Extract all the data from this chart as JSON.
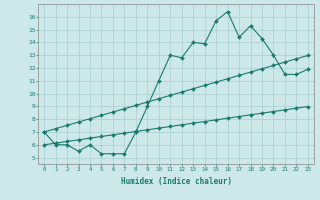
{
  "x": [
    0,
    1,
    2,
    3,
    4,
    5,
    6,
    7,
    8,
    9,
    10,
    11,
    12,
    13,
    14,
    15,
    16,
    17,
    18,
    19,
    20,
    21,
    22,
    23
  ],
  "line_jagged": [
    7,
    6,
    6,
    5.5,
    6,
    5.3,
    5.3,
    5.3,
    7,
    9,
    11,
    13,
    12.8,
    14,
    13.9,
    15.7,
    16.4,
    14.4,
    15.3,
    14.3,
    13,
    11.5,
    11.5,
    11.9
  ],
  "line_upper": [
    7.0,
    7.26,
    7.52,
    7.78,
    8.04,
    8.3,
    8.56,
    8.82,
    9.08,
    9.34,
    9.6,
    9.86,
    10.12,
    10.38,
    10.64,
    10.9,
    11.16,
    11.42,
    11.68,
    11.94,
    12.2,
    12.46,
    12.72,
    12.98
  ],
  "line_lower": [
    6.0,
    6.13,
    6.26,
    6.39,
    6.52,
    6.65,
    6.78,
    6.91,
    7.04,
    7.17,
    7.3,
    7.43,
    7.56,
    7.69,
    7.82,
    7.95,
    8.08,
    8.21,
    8.34,
    8.47,
    8.6,
    8.73,
    8.86,
    8.99
  ],
  "color": "#1a7a6e",
  "bg_color": "#cce8e8",
  "grid_color": "#aacece",
  "xlabel": "Humidex (Indice chaleur)",
  "xlim": [
    -0.5,
    23.5
  ],
  "ylim": [
    4.5,
    17
  ],
  "yticks": [
    5,
    6,
    7,
    8,
    9,
    10,
    11,
    12,
    13,
    14,
    15,
    16
  ],
  "xticks": [
    0,
    1,
    2,
    3,
    4,
    5,
    6,
    7,
    8,
    9,
    10,
    11,
    12,
    13,
    14,
    15,
    16,
    17,
    18,
    19,
    20,
    21,
    22,
    23
  ],
  "markersize": 2.0,
  "linewidth": 0.8
}
